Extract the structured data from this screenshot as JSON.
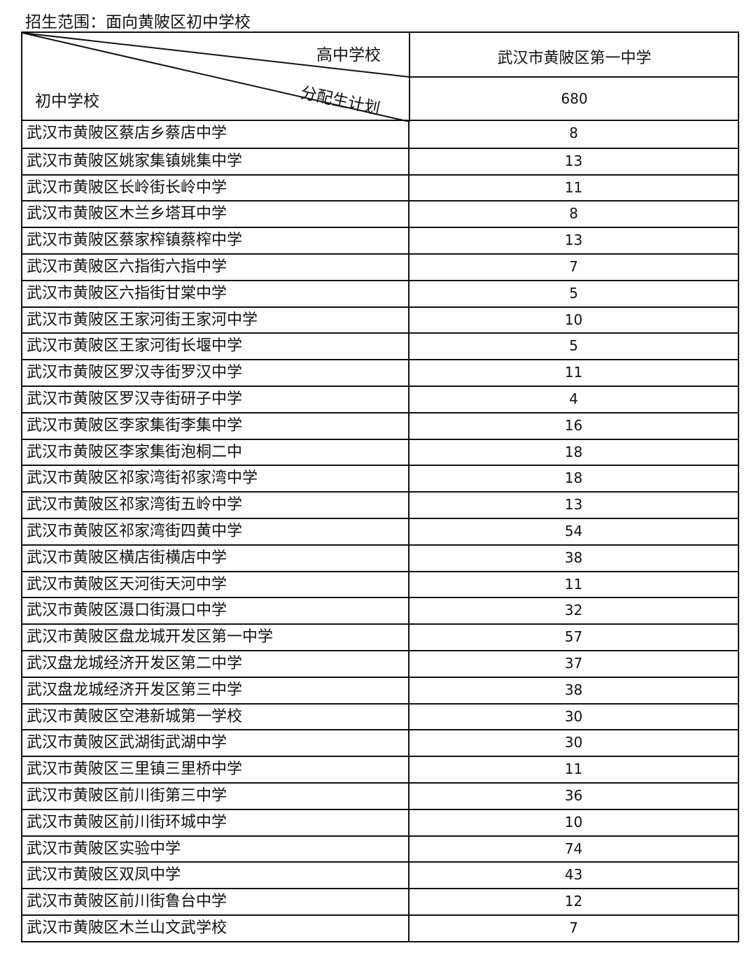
{
  "caption": "招生范围：面向黄陂区初中学校",
  "header": {
    "high_school_label": "高中学校",
    "plan_label": "分配生计划",
    "middle_school_label": "初中学校",
    "high_school": "武汉市黄陂区第一中学",
    "total_plan": "680"
  },
  "rows": [
    {
      "school": "武汉市黄陂区蔡店乡蔡店中学",
      "quota": "8"
    },
    {
      "school": "武汉市黄陂区姚家集镇姚集中学",
      "quota": "13"
    },
    {
      "school": "武汉市黄陂区长岭街长岭中学",
      "quota": "11"
    },
    {
      "school": "武汉市黄陂区木兰乡塔耳中学",
      "quota": "8"
    },
    {
      "school": "武汉市黄陂区蔡家榨镇蔡榨中学",
      "quota": "13"
    },
    {
      "school": "武汉市黄陂区六指街六指中学",
      "quota": "7"
    },
    {
      "school": "武汉市黄陂区六指街甘棠中学",
      "quota": "5"
    },
    {
      "school": "武汉市黄陂区王家河街王家河中学",
      "quota": "10"
    },
    {
      "school": "武汉市黄陂区王家河街长堰中学",
      "quota": "5"
    },
    {
      "school": "武汉市黄陂区罗汉寺街罗汉中学",
      "quota": "11"
    },
    {
      "school": "武汉市黄陂区罗汉寺街研子中学",
      "quota": "4"
    },
    {
      "school": "武汉市黄陂区李家集街李集中学",
      "quota": "16"
    },
    {
      "school": "武汉市黄陂区李家集街泡桐二中",
      "quota": "18"
    },
    {
      "school": "武汉市黄陂区祁家湾街祁家湾中学",
      "quota": "18"
    },
    {
      "school": "武汉市黄陂区祁家湾街五岭中学",
      "quota": "13"
    },
    {
      "school": "武汉市黄陂区祁家湾街四黄中学",
      "quota": "54"
    },
    {
      "school": "武汉市黄陂区横店街横店中学",
      "quota": "38"
    },
    {
      "school": "武汉市黄陂区天河街天河中学",
      "quota": "11"
    },
    {
      "school": "武汉市黄陂区滠口街滠口中学",
      "quota": "32"
    },
    {
      "school": "武汉市黄陂区盘龙城开发区第一中学",
      "quota": "57"
    },
    {
      "school": "武汉盘龙城经济开发区第二中学",
      "quota": "37"
    },
    {
      "school": "武汉盘龙城经济开发区第三中学",
      "quota": "38"
    },
    {
      "school": "武汉市黄陂区空港新城第一学校",
      "quota": "30"
    },
    {
      "school": "武汉市黄陂区武湖街武湖中学",
      "quota": "30"
    },
    {
      "school": "武汉市黄陂区三里镇三里桥中学",
      "quota": "11"
    },
    {
      "school": "武汉市黄陂区前川街第三中学",
      "quota": "36"
    },
    {
      "school": "武汉市黄陂区前川街环城中学",
      "quota": "10"
    },
    {
      "school": "武汉市黄陂区实验中学",
      "quota": "74"
    },
    {
      "school": "武汉市黄陂区双凤中学",
      "quota": "43"
    },
    {
      "school": "武汉市黄陂区前川街鲁台中学",
      "quota": "12"
    },
    {
      "school": "武汉市黄陂区木兰山文武学校",
      "quota": "7"
    }
  ]
}
